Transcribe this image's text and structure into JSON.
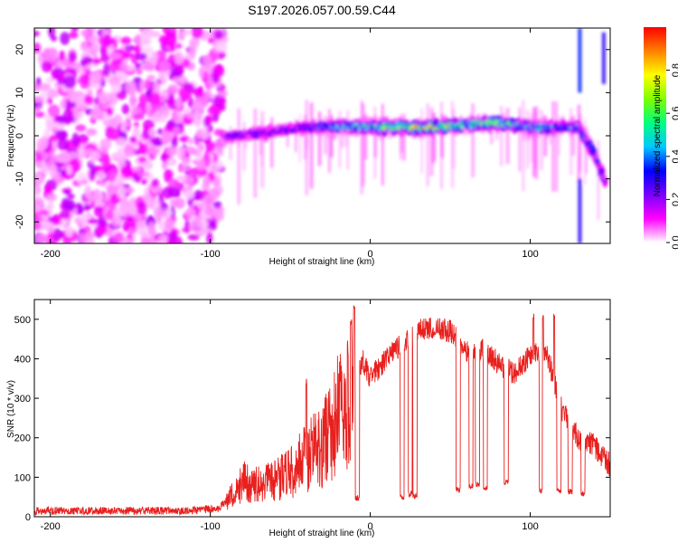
{
  "chart_data": [
    {
      "type": "heatmap",
      "title": "S197.2026.057.00.59.C44",
      "xlabel": "Height of straight line (km)",
      "ylabel": "Frequency (Hz)",
      "xlim": [
        -210,
        150
      ],
      "ylim": [
        -25,
        25
      ],
      "xticks": [
        -200,
        -100,
        0,
        100
      ],
      "yticks": [
        -20,
        -10,
        0,
        10,
        20
      ],
      "colorbar": {
        "label": "Normalized spectral amplitude",
        "range": [
          0,
          1
        ],
        "ticks": [
          "0.0",
          "0.2",
          "0.4",
          "0.6",
          "0.8"
        ],
        "stops": [
          "#ffffff",
          "#ff00ff",
          "#7a00ff",
          "#0000ff",
          "#00c8ff",
          "#00ff80",
          "#80ff00",
          "#ffff00",
          "#ff8000",
          "#ff0000"
        ]
      },
      "noise_region": {
        "x": [
          -210,
          -92
        ],
        "amplitude": 0.1
      },
      "ridge": {
        "x": [
          -92,
          -80,
          -60,
          -40,
          -20,
          0,
          20,
          40,
          60,
          80,
          100,
          120,
          130,
          140,
          148
        ],
        "freq": [
          0,
          0,
          1,
          2,
          2,
          2,
          2,
          2,
          2.5,
          3,
          2,
          2,
          2,
          -4,
          -12
        ],
        "peak_amplitude": [
          0.25,
          0.3,
          0.3,
          0.3,
          0.5,
          0.55,
          0.9,
          0.95,
          0.6,
          0.8,
          0.5,
          0.5,
          0.4,
          0.35,
          0.3
        ]
      }
    },
    {
      "type": "line",
      "title": "",
      "xlabel": "Height of straight line (km)",
      "ylabel": "SNR (10 * v/v)",
      "xlim": [
        -210,
        150
      ],
      "ylim": [
        0,
        550
      ],
      "xticks": [
        -200,
        -100,
        0,
        100
      ],
      "yticks": [
        0,
        100,
        200,
        300,
        400,
        500
      ],
      "color": "#e8201e",
      "series": [
        {
          "name": "SNR",
          "x": [
            -210,
            -180,
            -150,
            -120,
            -95,
            -85,
            -80,
            -70,
            -60,
            -50,
            -40,
            -30,
            -20,
            -10,
            -5,
            0,
            10,
            20,
            30,
            40,
            50,
            60,
            70,
            80,
            90,
            100,
            110,
            120,
            130,
            140,
            150
          ],
          "y": [
            15,
            15,
            15,
            15,
            20,
            60,
            90,
            80,
            90,
            110,
            150,
            180,
            260,
            330,
            400,
            350,
            400,
            440,
            470,
            480,
            470,
            420,
            420,
            390,
            360,
            410,
            420,
            270,
            200,
            180,
            130
          ]
        }
      ],
      "dropouts": [
        {
          "x": -8,
          "y": 40
        },
        {
          "x": 20,
          "y": 40
        },
        {
          "x": 25,
          "y": 50
        },
        {
          "x": 28,
          "y": 45
        },
        {
          "x": 55,
          "y": 60
        },
        {
          "x": 63,
          "y": 70
        },
        {
          "x": 67,
          "y": 75
        },
        {
          "x": 72,
          "y": 65
        },
        {
          "x": 85,
          "y": 80
        },
        {
          "x": 107,
          "y": 60
        },
        {
          "x": 118,
          "y": 60
        },
        {
          "x": 125,
          "y": 55
        },
        {
          "x": 133,
          "y": 50
        }
      ],
      "spikes": [
        {
          "x": -40,
          "y": 350
        },
        {
          "x": -12,
          "y": 500
        },
        {
          "x": -10,
          "y": 540
        },
        {
          "x": 102,
          "y": 515
        },
        {
          "x": 108,
          "y": 515
        },
        {
          "x": 115,
          "y": 515
        }
      ]
    }
  ]
}
